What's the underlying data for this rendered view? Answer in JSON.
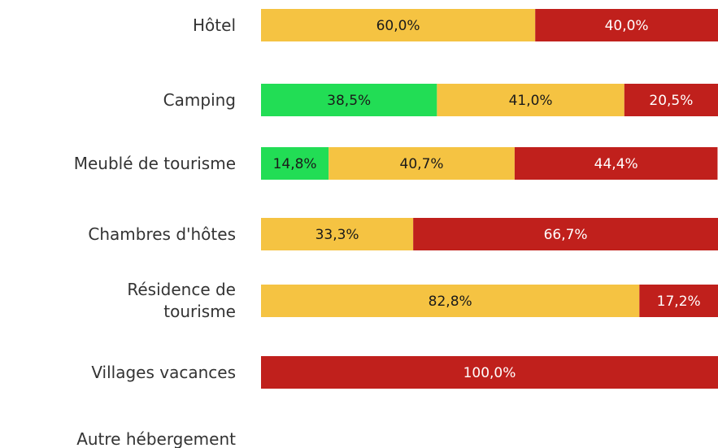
{
  "chart_data": {
    "type": "stacked-bar-horizontal",
    "categories": [
      "Hôtel",
      "Camping",
      "Meublé de tourisme",
      "Chambres d'hôtes",
      "Résidence de tourisme",
      "Villages vacances",
      "Autre hébergement"
    ],
    "xlim": [
      0,
      100
    ],
    "series": [
      {
        "color": "#22dd55",
        "label_color": "#1a1a1a",
        "values": [
          null,
          38.5,
          14.8,
          null,
          null,
          null,
          null
        ],
        "value_labels": [
          null,
          "38,5%",
          "14,8%",
          null,
          null,
          null,
          null
        ]
      },
      {
        "color": "#f5c342",
        "label_color": "#1a1a1a",
        "values": [
          60.0,
          41.0,
          40.7,
          33.3,
          82.8,
          null,
          null
        ],
        "value_labels": [
          "60,0%",
          "41,0%",
          "40,7%",
          "33,3%",
          "82,8%",
          null,
          null
        ]
      },
      {
        "color": "#c0201c",
        "label_color": "#ffffff",
        "values": [
          40.0,
          20.5,
          44.4,
          66.7,
          17.2,
          100.0,
          null
        ],
        "value_labels": [
          "40,0%",
          "20,5%",
          "44,4%",
          "66,7%",
          "17,2%",
          "100,0%",
          null
        ]
      }
    ]
  }
}
